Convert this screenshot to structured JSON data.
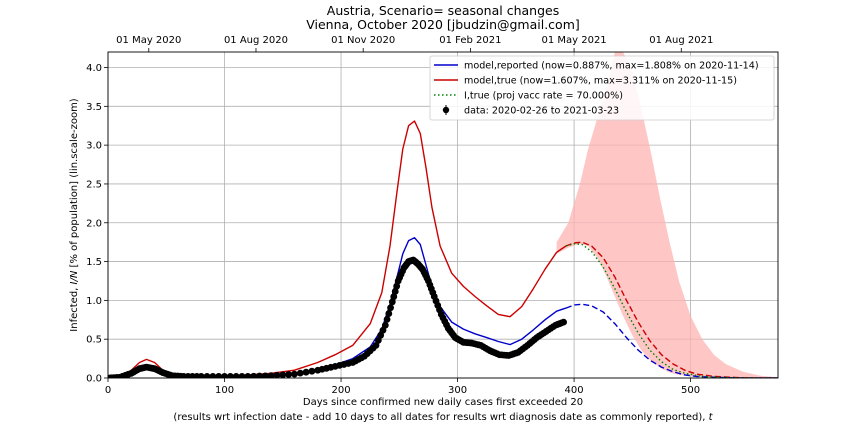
{
  "chart_data": {
    "type": "line",
    "title": "Austria, Scenario= seasonal changes",
    "subtitle": "Vienna, October 2020 [jbudzin@gmail.com]",
    "xlabel": "Days since confirmed new daily cases first exceeded 20",
    "xlabel2": "(results wrt infection date - add 10 days to all dates for results wrt diagnosis date as commonly reported), ",
    "xlabel2_var": "t",
    "ylabel_pre": "Infected, ",
    "ylabel_var": "I/N",
    "ylabel_post": " [% of population] (lin.scale-zoom)",
    "xlim": [
      0,
      575
    ],
    "ylim": [
      0,
      4.2
    ],
    "xticks": [
      0,
      100,
      200,
      300,
      400,
      500
    ],
    "yticks": [
      0.0,
      0.5,
      1.0,
      1.5,
      2.0,
      2.5,
      3.0,
      3.5,
      4.0
    ],
    "top_axis": {
      "labels": [
        "01 May 2020",
        "01 Aug 2020",
        "01 Nov 2020",
        "01 Feb 2021",
        "01 May 2021",
        "01 Aug 2021"
      ],
      "days": [
        35,
        127,
        219,
        311,
        400,
        492
      ]
    },
    "grid": true,
    "legend_position": "top-right",
    "legend": [
      {
        "label": "model,reported (now=0.887%, max=1.808% on 2020-11-14)",
        "color": "#0000cc",
        "style": "solid"
      },
      {
        "label": "model,true (now=1.607%, max=3.311% on 2020-11-15)",
        "color": "#cc0000",
        "style": "solid"
      },
      {
        "label": "I,true (proj vacc rate = 70.000%)",
        "color": "#008000",
        "style": "dotted"
      },
      {
        "label": "data: 2020-02-26 to 2021-03-23",
        "color": "#000000",
        "style": "marker"
      }
    ],
    "band": {
      "color": "#ffb3b3",
      "x": [
        385,
        395,
        405,
        412,
        420,
        428,
        435,
        442,
        450,
        458,
        466,
        474,
        482,
        490,
        500,
        510,
        520,
        530,
        545,
        560,
        575
      ],
      "upper": [
        1.75,
        2.0,
        2.5,
        2.95,
        3.35,
        3.75,
        4.2,
        4.2,
        3.95,
        3.45,
        2.9,
        2.3,
        1.75,
        1.25,
        0.8,
        0.5,
        0.3,
        0.18,
        0.08,
        0.03,
        0.01
      ],
      "lower": [
        1.6,
        1.68,
        1.73,
        1.7,
        1.55,
        1.3,
        1.05,
        0.8,
        0.55,
        0.35,
        0.22,
        0.13,
        0.07,
        0.04,
        0.02,
        0.01,
        0.005,
        0.0,
        0.0,
        0.0,
        0.0
      ]
    },
    "series": [
      {
        "name": "model,true (now=1.607%, max=3.311% on 2020-11-15)",
        "color": "#cc0000",
        "style": "solid",
        "x": [
          0,
          10,
          20,
          27,
          33,
          40,
          47,
          55,
          65,
          80,
          100,
          120,
          140,
          160,
          180,
          195,
          210,
          225,
          235,
          242,
          248,
          253,
          258,
          263,
          268,
          273,
          278,
          285,
          295,
          305,
          315,
          325,
          335,
          345,
          355,
          365,
          375,
          385,
          393
        ],
        "y": [
          0.0,
          0.02,
          0.1,
          0.2,
          0.24,
          0.2,
          0.1,
          0.05,
          0.03,
          0.03,
          0.03,
          0.04,
          0.06,
          0.1,
          0.2,
          0.3,
          0.42,
          0.7,
          1.1,
          1.7,
          2.4,
          2.95,
          3.25,
          3.311,
          3.15,
          2.7,
          2.2,
          1.7,
          1.35,
          1.18,
          1.05,
          0.93,
          0.82,
          0.79,
          0.92,
          1.15,
          1.4,
          1.62,
          1.7
        ]
      },
      {
        "name": "model,reported (now=0.887%, max=1.808% on 2020-11-14)",
        "color": "#0000cc",
        "style": "solid",
        "x": [
          0,
          10,
          20,
          27,
          33,
          40,
          47,
          55,
          65,
          80,
          100,
          120,
          140,
          160,
          180,
          195,
          210,
          225,
          235,
          242,
          248,
          253,
          258,
          263,
          268,
          273,
          278,
          285,
          295,
          305,
          315,
          325,
          335,
          345,
          355,
          365,
          375,
          385,
          393
        ],
        "y": [
          0.0,
          0.01,
          0.06,
          0.11,
          0.13,
          0.11,
          0.06,
          0.03,
          0.02,
          0.02,
          0.02,
          0.02,
          0.03,
          0.06,
          0.11,
          0.17,
          0.25,
          0.4,
          0.63,
          0.95,
          1.3,
          1.6,
          1.77,
          1.808,
          1.72,
          1.45,
          1.18,
          0.92,
          0.72,
          0.63,
          0.57,
          0.52,
          0.47,
          0.43,
          0.5,
          0.62,
          0.75,
          0.86,
          0.9
        ]
      },
      {
        "name": "model,true projection",
        "color": "#cc0000",
        "style": "dashed",
        "x": [
          393,
          400,
          407,
          415,
          425,
          435,
          445,
          455,
          465,
          475,
          485,
          495,
          505,
          520,
          540,
          560,
          575
        ],
        "y": [
          1.7,
          1.74,
          1.75,
          1.7,
          1.55,
          1.3,
          1.0,
          0.72,
          0.48,
          0.3,
          0.18,
          0.1,
          0.05,
          0.02,
          0.005,
          0.0,
          0.0
        ]
      },
      {
        "name": "model,reported projection",
        "color": "#0000cc",
        "style": "dashed",
        "x": [
          393,
          400,
          407,
          415,
          425,
          435,
          445,
          455,
          465,
          475,
          485,
          495,
          505,
          520,
          540,
          560,
          575
        ],
        "y": [
          0.9,
          0.94,
          0.95,
          0.93,
          0.85,
          0.7,
          0.52,
          0.36,
          0.23,
          0.14,
          0.08,
          0.04,
          0.02,
          0.01,
          0.0,
          0.0,
          0.0
        ]
      },
      {
        "name": "I,true (proj vacc rate = 70.000%)",
        "color": "#008000",
        "style": "dotted",
        "x": [
          393,
          400,
          407,
          415,
          425,
          435,
          445,
          455,
          465,
          475,
          485,
          495,
          510,
          530,
          560,
          575
        ],
        "y": [
          1.7,
          1.73,
          1.72,
          1.63,
          1.43,
          1.15,
          0.85,
          0.58,
          0.36,
          0.21,
          0.11,
          0.06,
          0.02,
          0.005,
          0.0,
          0.0
        ]
      },
      {
        "name": "data: 2020-02-26 to 2021-03-23",
        "color": "#000000",
        "style": "marker",
        "x": [
          0,
          10,
          20,
          27,
          33,
          40,
          47,
          55,
          65,
          80,
          100,
          120,
          140,
          160,
          180,
          195,
          210,
          220,
          230,
          238,
          244,
          249,
          254,
          258,
          262,
          266,
          270,
          275,
          280,
          286,
          292,
          298,
          305,
          312,
          320,
          328,
          336,
          344,
          352,
          360,
          368,
          376,
          384,
          391
        ],
        "y": [
          0.0,
          0.01,
          0.06,
          0.12,
          0.14,
          0.12,
          0.07,
          0.03,
          0.02,
          0.02,
          0.02,
          0.02,
          0.03,
          0.05,
          0.1,
          0.15,
          0.2,
          0.28,
          0.42,
          0.68,
          0.98,
          1.25,
          1.42,
          1.5,
          1.52,
          1.47,
          1.4,
          1.25,
          1.05,
          0.82,
          0.64,
          0.52,
          0.46,
          0.45,
          0.42,
          0.35,
          0.3,
          0.29,
          0.33,
          0.42,
          0.52,
          0.6,
          0.68,
          0.72
        ]
      }
    ]
  }
}
